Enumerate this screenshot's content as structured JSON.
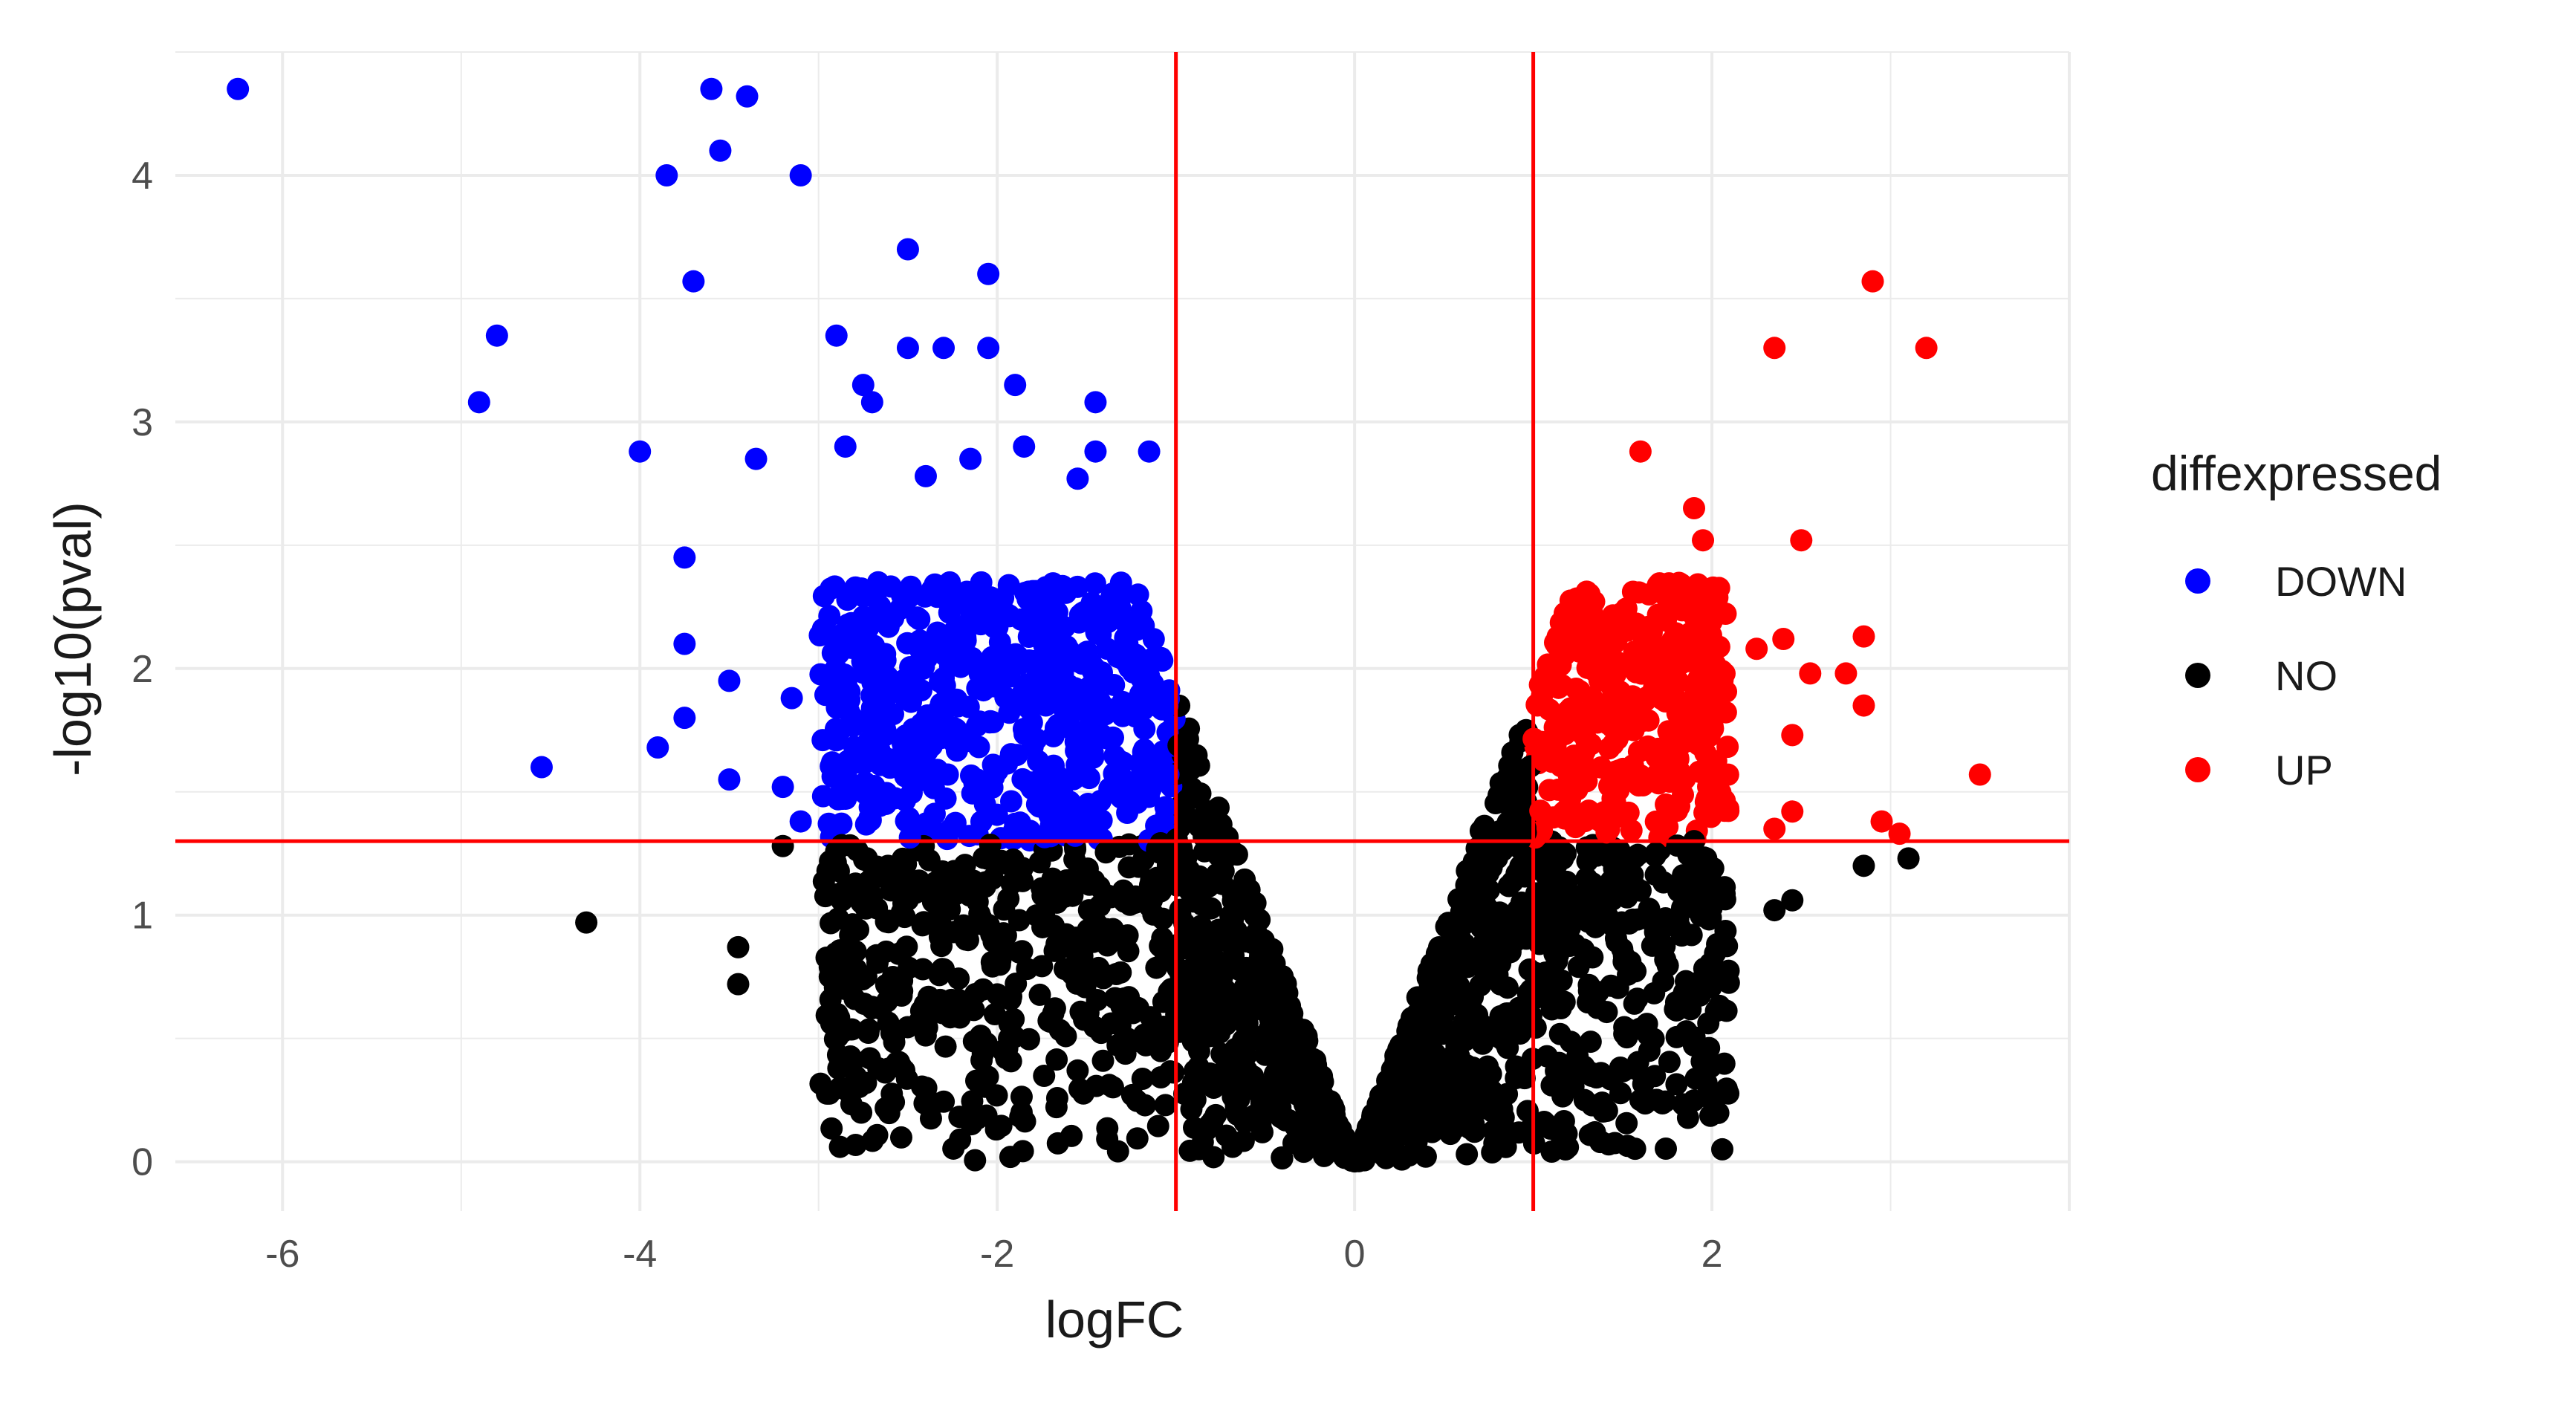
{
  "chart_data": {
    "type": "scatter",
    "title": "",
    "xlabel": "logFC",
    "ylabel": "-log10(pval)",
    "xlim": [
      -6.6,
      4.0
    ],
    "ylim": [
      -0.2,
      4.5
    ],
    "xticks": [
      -6,
      -4,
      -2,
      0,
      2
    ],
    "xtick_labels": [
      "-6",
      "-4",
      "-2",
      "0",
      "2"
    ],
    "yticks": [
      0,
      1,
      2,
      3,
      4
    ],
    "ytick_labels": [
      "0",
      "1",
      "2",
      "3",
      "4"
    ],
    "grid": true,
    "legend_position": "right",
    "legend": {
      "title": "diffexpressed",
      "entries": [
        {
          "label": "DOWN",
          "color": "#0000ff"
        },
        {
          "label": "NO",
          "color": "#000000"
        },
        {
          "label": "UP",
          "color": "#ff0000"
        }
      ]
    },
    "thresholds": {
      "vlines": [
        -1,
        1
      ],
      "hline": 1.3,
      "color": "#ff0000"
    },
    "colors": {
      "DOWN": "#0000ff",
      "NO": "#000000",
      "UP": "#ff0000",
      "background": "#ffffff",
      "grid": "#ebebeb"
    },
    "series": [
      {
        "name": "DOWN",
        "points": [
          [
            -6.25,
            4.35
          ],
          [
            -3.6,
            4.35
          ],
          [
            -3.4,
            4.32
          ],
          [
            -3.55,
            4.1
          ],
          [
            -3.85,
            4.0
          ],
          [
            -3.1,
            4.0
          ],
          [
            -3.7,
            3.57
          ],
          [
            -4.8,
            3.35
          ],
          [
            -4.9,
            3.08
          ],
          [
            -4.0,
            2.88
          ],
          [
            -2.5,
            3.7
          ],
          [
            -2.05,
            3.6
          ],
          [
            -2.9,
            3.35
          ],
          [
            -2.5,
            3.3
          ],
          [
            -2.3,
            3.3
          ],
          [
            -2.05,
            3.3
          ],
          [
            -1.9,
            3.15
          ],
          [
            -2.75,
            3.15
          ],
          [
            -1.45,
            3.08
          ],
          [
            -2.7,
            3.08
          ],
          [
            -1.15,
            2.88
          ],
          [
            -1.45,
            2.88
          ],
          [
            -1.85,
            2.9
          ],
          [
            -2.85,
            2.9
          ],
          [
            -3.35,
            2.85
          ],
          [
            -2.4,
            2.78
          ],
          [
            -1.55,
            2.77
          ],
          [
            -2.15,
            2.85
          ],
          [
            -3.75,
            2.45
          ],
          [
            -4.55,
            1.6
          ],
          [
            -3.9,
            1.68
          ],
          [
            -3.75,
            1.8
          ],
          [
            -3.75,
            2.1
          ],
          [
            -3.5,
            1.95
          ],
          [
            -3.5,
            1.55
          ],
          [
            -3.2,
            1.52
          ],
          [
            -3.1,
            1.38
          ],
          [
            -3.15,
            1.88
          ]
        ]
      },
      {
        "name": "NO",
        "points": [
          [
            -4.3,
            0.97
          ],
          [
            -3.45,
            0.87
          ],
          [
            -3.45,
            0.72
          ],
          [
            -2.65,
            0.62
          ],
          [
            -2.2,
            0.6
          ],
          [
            -1.95,
            0.42
          ],
          [
            -1.55,
            0.37
          ],
          [
            -3.2,
            1.28
          ],
          [
            -2.95,
            1.18
          ],
          [
            1.65,
            0.45
          ],
          [
            1.6,
            0.25
          ],
          [
            2.35,
            1.02
          ],
          [
            2.45,
            1.06
          ],
          [
            2.85,
            1.2
          ],
          [
            3.1,
            1.23
          ],
          [
            1.9,
            1.3
          ]
        ]
      },
      {
        "name": "UP",
        "points": [
          [
            2.9,
            3.57
          ],
          [
            2.35,
            3.3
          ],
          [
            3.2,
            3.3
          ],
          [
            1.6,
            2.88
          ],
          [
            1.9,
            2.65
          ],
          [
            1.95,
            2.52
          ],
          [
            2.5,
            2.52
          ],
          [
            2.4,
            2.12
          ],
          [
            2.85,
            2.13
          ],
          [
            2.25,
            2.08
          ],
          [
            2.55,
            1.98
          ],
          [
            2.75,
            1.98
          ],
          [
            2.85,
            1.85
          ],
          [
            2.45,
            1.73
          ],
          [
            3.5,
            1.57
          ],
          [
            2.45,
            1.42
          ],
          [
            2.35,
            1.35
          ],
          [
            2.95,
            1.38
          ],
          [
            3.05,
            1.33
          ]
        ]
      }
    ]
  }
}
